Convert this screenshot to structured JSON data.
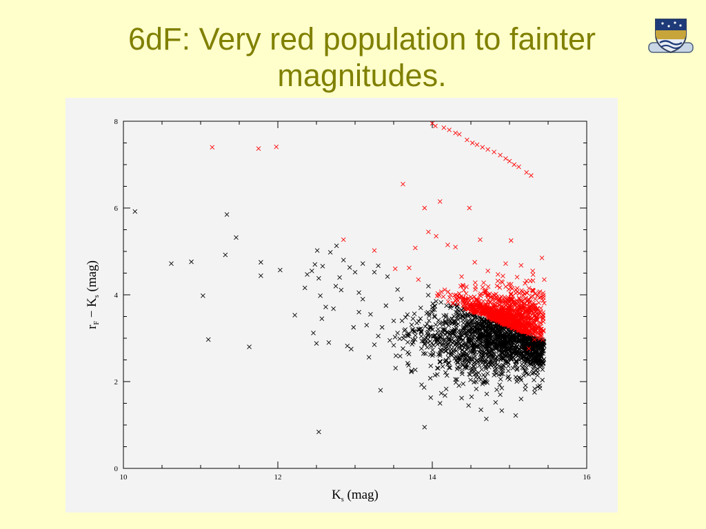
{
  "slide": {
    "title_line1": "6dF: Very red population to fainter",
    "title_line2": "magnitudes."
  },
  "colors": {
    "background": "#ffffcc",
    "title": "#808000",
    "plot_panel": "#f3f3f3",
    "series_black": "#000000",
    "series_red": "#ff0000"
  },
  "logo": {
    "icon": "university-crest-icon"
  },
  "chart_data": {
    "type": "scatter",
    "marker": "cross",
    "xlim": [
      10,
      16
    ],
    "ylim": [
      0,
      8
    ],
    "x_ticks": [
      10,
      12,
      14,
      16
    ],
    "y_ticks": [
      0,
      2,
      4,
      6,
      8
    ],
    "xlabel": {
      "main": "K",
      "sub": "s",
      "rest": " (mag)"
    },
    "ylabel": {
      "part1": "r",
      "sub1": "F",
      "part2": " − K",
      "sub2": "s",
      "part3": " (mag)"
    },
    "grid": false,
    "series": [
      {
        "color": "#000000",
        "points": [
          [
            10.15,
            5.92
          ],
          [
            10.62,
            4.72
          ],
          [
            10.88,
            4.76
          ],
          [
            11.03,
            3.98
          ],
          [
            11.1,
            2.97
          ],
          [
            11.32,
            4.92
          ],
          [
            11.34,
            5.85
          ],
          [
            11.46,
            5.32
          ],
          [
            11.63,
            2.8
          ],
          [
            11.78,
            4.75
          ],
          [
            11.78,
            4.44
          ],
          [
            12.03,
            4.57
          ],
          [
            12.22,
            3.53
          ],
          [
            12.35,
            4.16
          ],
          [
            12.38,
            4.47
          ],
          [
            12.44,
            4.55
          ],
          [
            12.46,
            3.12
          ],
          [
            12.48,
            4.7
          ],
          [
            12.5,
            2.88
          ],
          [
            12.51,
            5.02
          ],
          [
            12.53,
            4.38
          ],
          [
            12.53,
            0.84
          ],
          [
            12.55,
            3.98
          ],
          [
            12.57,
            3.45
          ],
          [
            12.58,
            4.66
          ],
          [
            12.62,
            3.72
          ],
          [
            12.66,
            2.9
          ],
          [
            12.68,
            4.98
          ],
          [
            12.72,
            3.68
          ],
          [
            12.75,
            4.2
          ],
          [
            12.76,
            5.13
          ],
          [
            12.8,
            4.4
          ],
          [
            12.82,
            4.11
          ],
          [
            12.85,
            4.8
          ],
          [
            12.9,
            2.82
          ],
          [
            12.93,
            4.63
          ],
          [
            12.95,
            2.75
          ],
          [
            12.98,
            3.25
          ],
          [
            13.0,
            4.52
          ],
          [
            13.05,
            3.6
          ],
          [
            13.1,
            4.72
          ],
          [
            13.18,
            2.56
          ],
          [
            13.25,
            4.52
          ],
          [
            13.3,
            4.67
          ],
          [
            13.33,
            1.8
          ],
          [
            13.42,
            4.42
          ],
          [
            13.55,
            3.12
          ],
          [
            13.62,
            2.76
          ],
          [
            13.73,
            2.25
          ],
          [
            13.78,
            2.27
          ],
          [
            13.9,
            0.95
          ],
          [
            13.98,
            1.63
          ],
          [
            14.1,
            1.5
          ],
          [
            14.18,
            1.83
          ],
          [
            14.38,
            1.62
          ],
          [
            14.47,
            1.45
          ],
          [
            14.57,
            1.83
          ],
          [
            14.63,
            1.35
          ],
          [
            14.7,
            1.14
          ],
          [
            14.82,
            1.52
          ],
          [
            14.88,
            1.7
          ],
          [
            14.9,
            1.33
          ],
          [
            15.08,
            1.22
          ],
          [
            15.15,
            1.6
          ],
          [
            13.6,
            3.9
          ],
          [
            13.5,
            3.4
          ],
          [
            13.4,
            3.75
          ],
          [
            13.3,
            3.05
          ],
          [
            13.2,
            3.55
          ],
          [
            13.1,
            3.9
          ],
          [
            13.7,
            3.1
          ],
          [
            13.8,
            3.35
          ],
          [
            13.9,
            2.95
          ],
          [
            14.0,
            3.6
          ],
          [
            14.1,
            2.6
          ],
          [
            14.2,
            2.4
          ],
          [
            14.3,
            2.05
          ],
          [
            14.4,
            1.95
          ],
          [
            14.5,
            2.25
          ],
          [
            14.6,
            2.2
          ],
          [
            14.7,
            2.0
          ],
          [
            14.8,
            2.15
          ],
          [
            14.9,
            1.85
          ],
          [
            15.0,
            2.05
          ],
          [
            15.1,
            2.3
          ],
          [
            15.2,
            2.25
          ],
          [
            14.25,
            2.75
          ],
          [
            14.35,
            2.55
          ],
          [
            14.45,
            2.65
          ],
          [
            14.55,
            2.45
          ],
          [
            14.65,
            2.6
          ],
          [
            14.75,
            2.4
          ],
          [
            14.85,
            2.5
          ],
          [
            14.95,
            2.45
          ],
          [
            15.05,
            2.55
          ],
          [
            15.15,
            2.6
          ],
          [
            15.25,
            2.58
          ],
          [
            13.55,
            4.12
          ],
          [
            13.45,
            2.95
          ],
          [
            13.35,
            3.25
          ],
          [
            13.25,
            2.85
          ],
          [
            13.15,
            3.3
          ],
          [
            13.05,
            4.05
          ],
          [
            14.05,
            3.85
          ],
          [
            13.95,
            4.2
          ],
          [
            13.85,
            3.7
          ],
          [
            13.75,
            3.45
          ],
          [
            13.65,
            3.2
          ],
          [
            14.15,
            3.2
          ],
          [
            14.3,
            3.4
          ],
          [
            14.5,
            3.1
          ],
          [
            14.7,
            2.95
          ],
          [
            14.9,
            2.85
          ],
          [
            15.1,
            2.7
          ],
          [
            15.3,
            2.75
          ]
        ]
      },
      {
        "color": "#ff0000",
        "points": [
          [
            11.15,
            7.4
          ],
          [
            11.75,
            7.37
          ],
          [
            11.98,
            7.41
          ],
          [
            12.85,
            5.27
          ],
          [
            13.25,
            5.02
          ],
          [
            13.52,
            4.6
          ],
          [
            13.62,
            6.55
          ],
          [
            13.7,
            4.62
          ],
          [
            13.78,
            5.08
          ],
          [
            13.82,
            4.35
          ],
          [
            13.9,
            6.0
          ],
          [
            13.95,
            5.45
          ],
          [
            14.05,
            5.35
          ],
          [
            14.1,
            6.15
          ],
          [
            14.2,
            5.15
          ],
          [
            14.3,
            5.1
          ],
          [
            14.38,
            4.42
          ],
          [
            14.48,
            6.0
          ],
          [
            14.55,
            4.75
          ],
          [
            14.62,
            5.27
          ],
          [
            14.72,
            4.55
          ],
          [
            14.85,
            4.47
          ],
          [
            14.95,
            4.72
          ],
          [
            15.02,
            5.25
          ],
          [
            15.15,
            4.68
          ],
          [
            15.22,
            4.32
          ],
          [
            15.3,
            4.55
          ],
          [
            15.42,
            4.85
          ],
          [
            15.45,
            4.35
          ],
          [
            15.37,
            3.1
          ],
          [
            15.32,
            2.97
          ],
          [
            15.25,
            2.76
          ],
          [
            14.0,
            7.95
          ],
          [
            14.04,
            7.89
          ],
          [
            14.15,
            7.85
          ],
          [
            14.22,
            7.8
          ],
          [
            14.3,
            7.73
          ],
          [
            14.35,
            7.7
          ],
          [
            14.45,
            7.57
          ],
          [
            14.52,
            7.5
          ],
          [
            14.58,
            7.46
          ],
          [
            14.65,
            7.4
          ],
          [
            14.72,
            7.35
          ],
          [
            14.8,
            7.29
          ],
          [
            14.88,
            7.22
          ],
          [
            14.95,
            7.14
          ],
          [
            15.0,
            7.08
          ],
          [
            15.06,
            7.0
          ],
          [
            15.12,
            6.95
          ],
          [
            15.22,
            6.82
          ],
          [
            15.28,
            6.75
          ],
          [
            15.38,
            4.05
          ],
          [
            15.4,
            3.6
          ],
          [
            15.35,
            3.45
          ],
          [
            15.1,
            4.15
          ],
          [
            14.4,
            4.2
          ],
          [
            14.5,
            3.95
          ]
        ]
      }
    ],
    "dense_clusters": [
      {
        "color": "#000000",
        "description_x_range": [
          13.6,
          15.5
        ],
        "note_band": "below diagonal",
        "count": 1500,
        "center": [
          14.8,
          3.0
        ],
        "spread": [
          0.5,
          0.45
        ]
      },
      {
        "color": "#ff0000",
        "count": 1100,
        "center": [
          15.0,
          3.45
        ],
        "spread": [
          0.3,
          0.35
        ]
      }
    ]
  }
}
